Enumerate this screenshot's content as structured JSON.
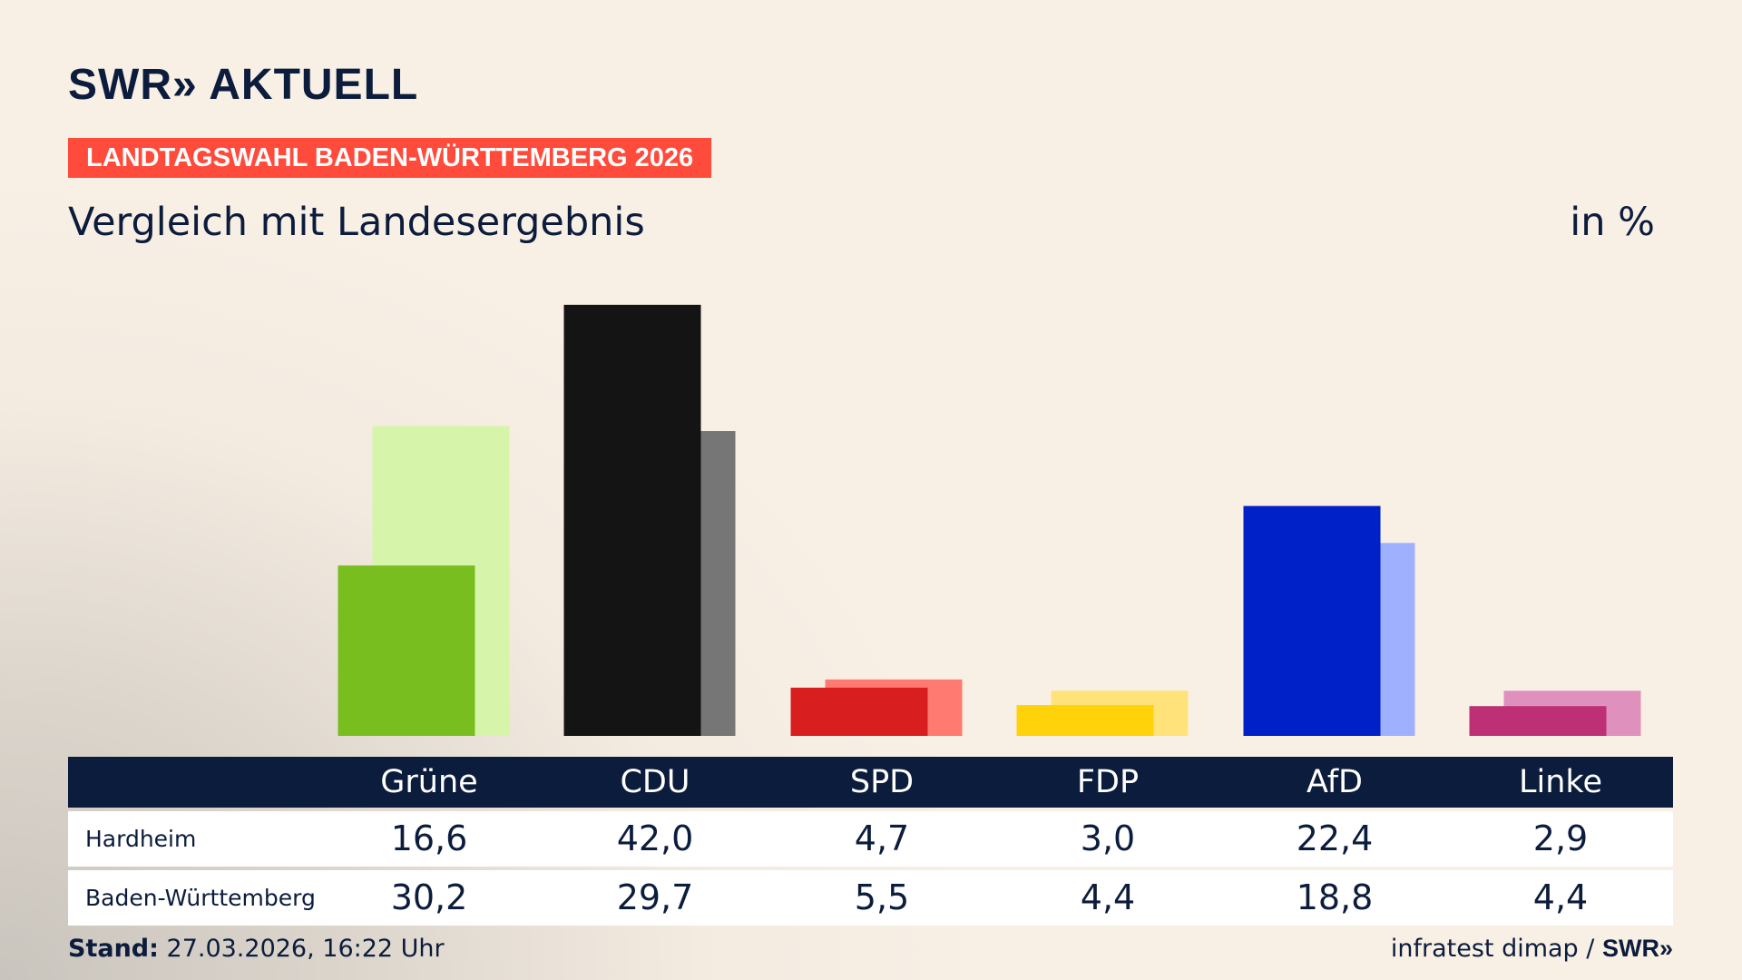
{
  "header": {
    "logo": "SWR» AKTUELL",
    "banner": "LANDTAGSWAHL BADEN-WÜRTTEMBERG 2026",
    "subtitle": "Vergleich mit Landesergebnis",
    "unit": "in %"
  },
  "chart_data": {
    "type": "bar",
    "categories": [
      "Grüne",
      "CDU",
      "SPD",
      "FDP",
      "AfD",
      "Linke"
    ],
    "series": [
      {
        "name": "Hardheim",
        "values": [
          16.6,
          42.0,
          4.7,
          3.0,
          22.4,
          2.9
        ],
        "display": [
          "16,6",
          "42,0",
          "4,7",
          "3,0",
          "22,4",
          "2,9"
        ],
        "colors": [
          "#78be1e",
          "#141414",
          "#d81e1e",
          "#ffd20a",
          "#0020c8",
          "#be3075"
        ]
      },
      {
        "name": "Baden-Württemberg",
        "values": [
          30.2,
          29.7,
          5.5,
          4.4,
          18.8,
          4.4
        ],
        "display": [
          "30,2",
          "29,7",
          "5,5",
          "4,4",
          "18,8",
          "4,4"
        ],
        "colors": [
          "#d6f5aa",
          "#767676",
          "#ff7a70",
          "#ffe37a",
          "#9fb0ff",
          "#df90bd"
        ]
      }
    ],
    "ylim": [
      0,
      42
    ]
  },
  "footer": {
    "stand_label": "Stand:",
    "stand_value": "27.03.2026, 16:22 Uhr",
    "source": "infratest dimap /",
    "source_logo": "SWR»"
  }
}
